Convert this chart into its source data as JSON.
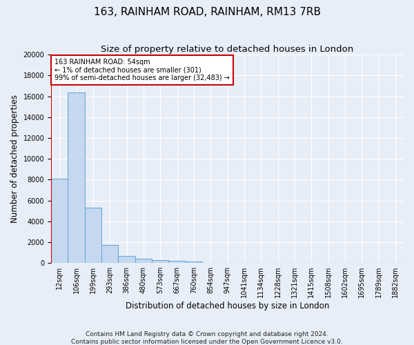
{
  "title": "163, RAINHAM ROAD, RAINHAM, RM13 7RB",
  "subtitle": "Size of property relative to detached houses in London",
  "xlabel": "Distribution of detached houses by size in London",
  "ylabel": "Number of detached properties",
  "footer_line1": "Contains HM Land Registry data © Crown copyright and database right 2024.",
  "footer_line2": "Contains public sector information licensed under the Open Government Licence v3.0.",
  "annotation_line1": "163 RAINHAM ROAD: 54sqm",
  "annotation_line2": "← 1% of detached houses are smaller (301)",
  "annotation_line3": "99% of semi-detached houses are larger (32,483) →",
  "bar_color": "#c5d8f0",
  "bar_edge_color": "#6aaad4",
  "red_line_color": "#cc0000",
  "annotation_box_facecolor": "#ffffff",
  "annotation_box_edgecolor": "#cc0000",
  "categories": [
    "12sqm",
    "106sqm",
    "199sqm",
    "293sqm",
    "386sqm",
    "480sqm",
    "573sqm",
    "667sqm",
    "760sqm",
    "854sqm",
    "947sqm",
    "1041sqm",
    "1134sqm",
    "1228sqm",
    "1321sqm",
    "1415sqm",
    "1508sqm",
    "1602sqm",
    "1695sqm",
    "1789sqm",
    "1882sqm"
  ],
  "bar_heights": [
    8100,
    16400,
    5300,
    1750,
    650,
    380,
    280,
    210,
    130,
    0,
    0,
    0,
    0,
    0,
    0,
    0,
    0,
    0,
    0,
    0,
    0
  ],
  "red_line_index": 0,
  "ylim": [
    0,
    20000
  ],
  "yticks": [
    0,
    2000,
    4000,
    6000,
    8000,
    10000,
    12000,
    14000,
    16000,
    18000,
    20000
  ],
  "background_color": "#e8eef8",
  "grid_color": "#ffffff",
  "title_fontsize": 11,
  "subtitle_fontsize": 9.5,
  "axis_label_fontsize": 8.5,
  "tick_fontsize": 7,
  "footer_fontsize": 6.5
}
